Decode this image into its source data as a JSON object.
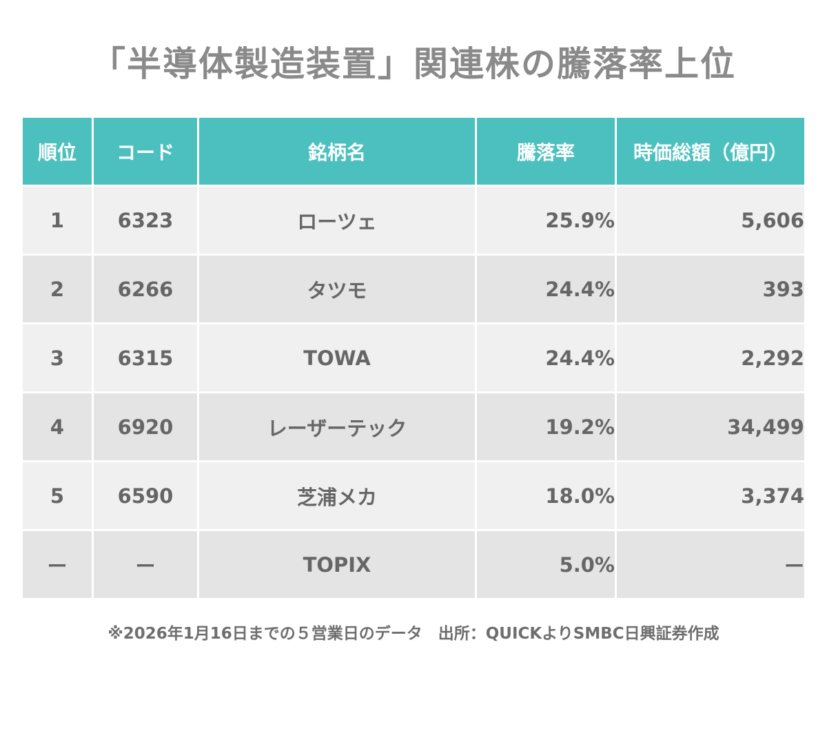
{
  "title": "「半導体製造装置」関連株の騰落率上位",
  "chart_data": {
    "type": "table",
    "columns": [
      "順位",
      "コード",
      "銘柄名",
      "騰落率",
      "時価総額（億円）"
    ],
    "rows": [
      {
        "rank": "1",
        "code": "6323",
        "name": "ローツェ",
        "rate": "25.9%",
        "cap": "5,606"
      },
      {
        "rank": "2",
        "code": "6266",
        "name": "タツモ",
        "rate": "24.4%",
        "cap": "393"
      },
      {
        "rank": "3",
        "code": "6315",
        "name": "TOWA",
        "rate": "24.4%",
        "cap": "2,292"
      },
      {
        "rank": "4",
        "code": "6920",
        "name": "レーザーテック",
        "rate": "19.2%",
        "cap": "34,499"
      },
      {
        "rank": "5",
        "code": "6590",
        "name": "芝浦メカ",
        "rate": "18.0%",
        "cap": "3,374"
      },
      {
        "rank": "ー",
        "code": "ー",
        "name": "TOPIX",
        "rate": "5.0%",
        "cap": "ー"
      }
    ]
  },
  "footnote": "※2026年1月16日までの５営業日のデータ　出所：QUICKよりSMBC日興証券作成",
  "colors": {
    "header_bg": "#4cc0be",
    "row_light": "#f0f0f0",
    "row_dark": "#e4e4e4",
    "title_text": "#8a8a8a"
  }
}
